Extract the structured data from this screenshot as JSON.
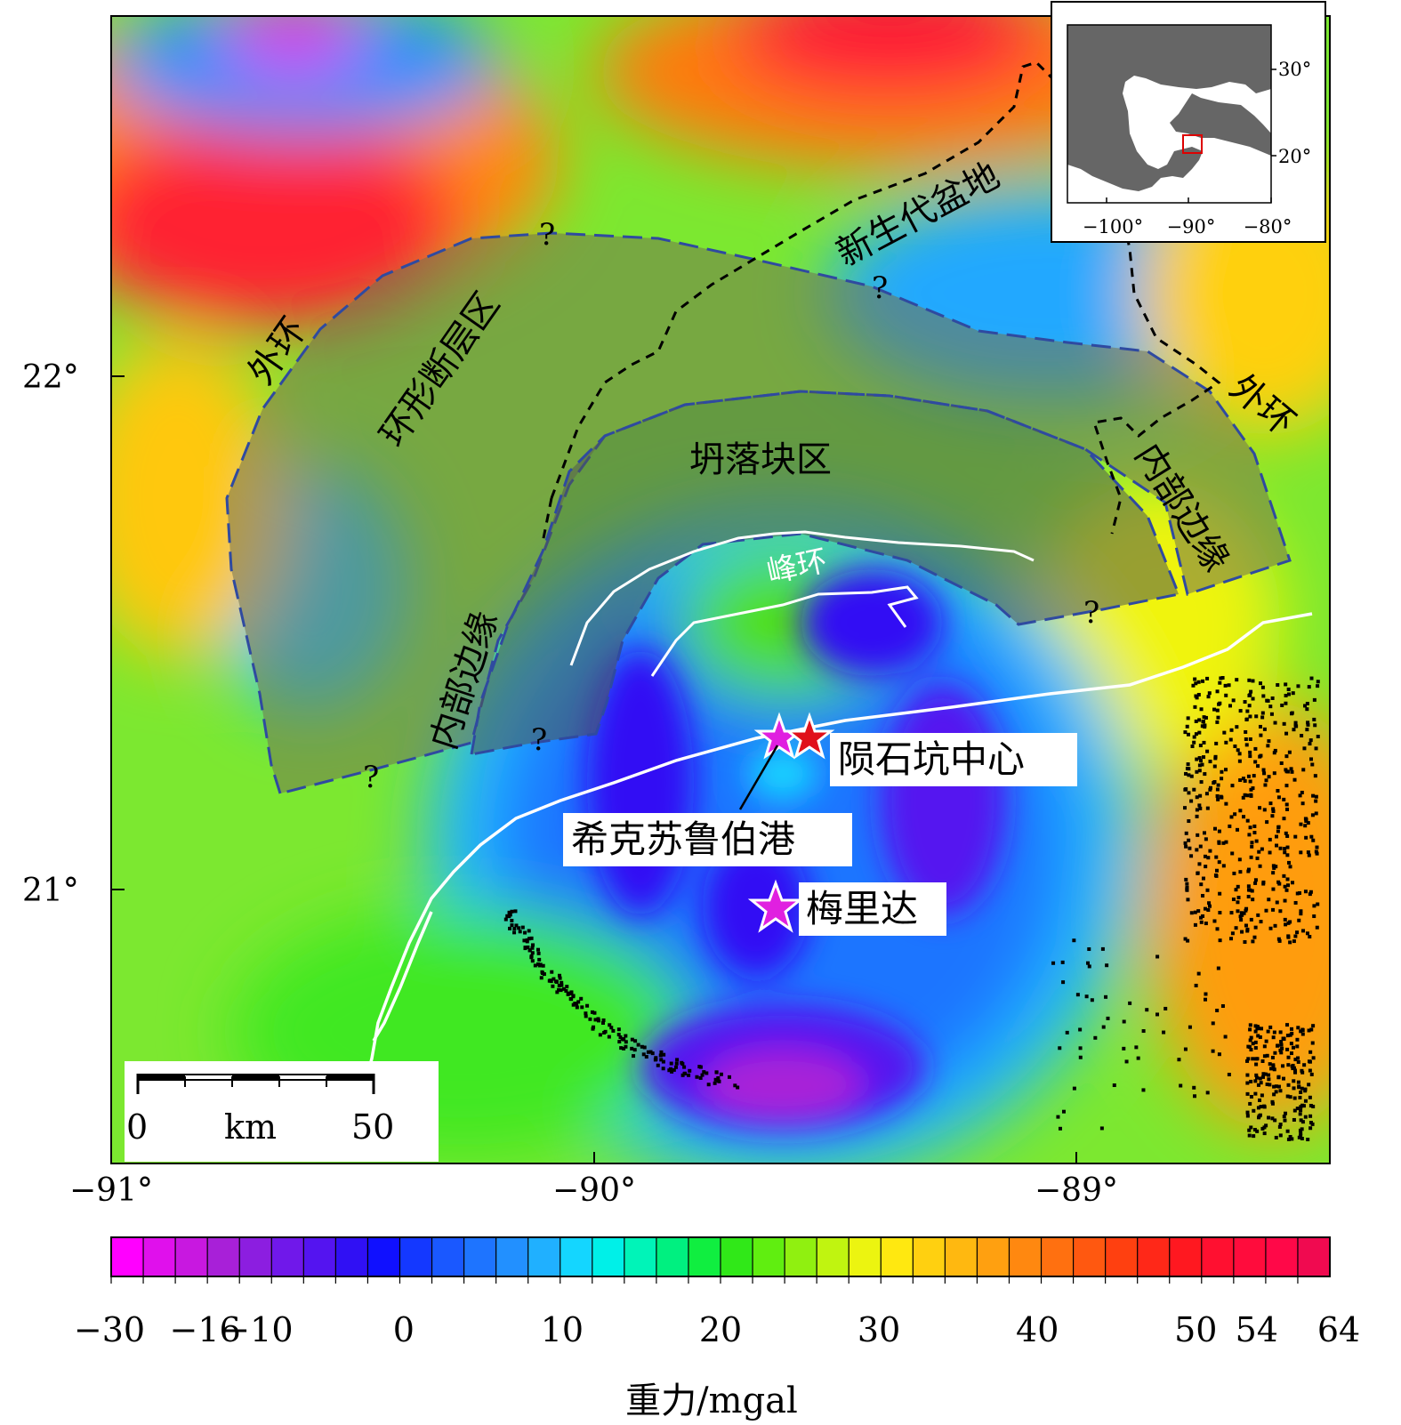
{
  "map": {
    "lat_ticks": [
      {
        "lat": 22,
        "label": "22°"
      },
      {
        "lat": 21,
        "label": "21°"
      }
    ],
    "lon_ticks": [
      {
        "lon": -91,
        "label": "−91°"
      },
      {
        "lon": -90,
        "label": "−90°"
      },
      {
        "lon": -89,
        "label": "−89°"
      }
    ],
    "labels": {
      "outer_ring_left": "外环",
      "outer_ring_right": "外环",
      "ring_fault_zone": "环形断层区",
      "cenozoic_basin": "新生代盆地",
      "slump_block_zone": "坍落块区",
      "inner_margin_left": "内部边缘",
      "inner_margin_right": "内部边缘",
      "peak_ring": "峰环",
      "question_mark": "?"
    },
    "places": {
      "crater_center": "陨石坑中心",
      "chicxulub_port": "希克苏鲁伯港",
      "merida": "梅里达"
    },
    "scale_bar": {
      "start": "0",
      "unit": "km",
      "end": "50"
    },
    "colors": {
      "crater_center_star": "#e0101a",
      "town_star": "#e020e0",
      "coastline": "#ffffff",
      "boundary_dash": "#2f4aa0",
      "inset_box": "#dd0000"
    }
  },
  "inset": {
    "lon_ticks": [
      {
        "lon": -100,
        "label": "−100°"
      },
      {
        "lon": -90,
        "label": "−90°"
      },
      {
        "lon": -80,
        "label": "−80°"
      }
    ],
    "lat_ticks": [
      {
        "lat": 30,
        "label": "30°"
      },
      {
        "lat": 20,
        "label": "20°"
      }
    ]
  },
  "colorbar": {
    "tick_labels": [
      {
        "value": -30,
        "label": "−30"
      },
      {
        "value": -16,
        "label": "−16"
      },
      {
        "value": -10,
        "label": "−10"
      },
      {
        "value": 0,
        "label": "0"
      },
      {
        "value": 10,
        "label": "10"
      },
      {
        "value": 20,
        "label": "20"
      },
      {
        "value": 30,
        "label": "30"
      },
      {
        "value": 40,
        "label": "40"
      },
      {
        "value": 50,
        "label": "50"
      },
      {
        "value": 54,
        "label": "54"
      },
      {
        "value": 64,
        "label": "64"
      }
    ],
    "colors": [
      "#ff00ff",
      "#e010ec",
      "#c818e0",
      "#a820d8",
      "#8c1ee0",
      "#7018ea",
      "#5414f0",
      "#3010f4",
      "#1010ff",
      "#1438ff",
      "#1a58ff",
      "#1e74ff",
      "#2290ff",
      "#20b0ff",
      "#14d6ff",
      "#00f0e8",
      "#00f4b8",
      "#00f080",
      "#10ee40",
      "#30e818",
      "#60ee10",
      "#90f010",
      "#c0f410",
      "#ecf410",
      "#ffe810",
      "#ffd010",
      "#ffb810",
      "#ffa010",
      "#ff8810",
      "#ff7010",
      "#ff5810",
      "#ff4010",
      "#ff2818",
      "#ff1820",
      "#ff1030",
      "#ff0c3c",
      "#ff0848",
      "#f00a50"
    ],
    "label": "重力/mgal"
  }
}
